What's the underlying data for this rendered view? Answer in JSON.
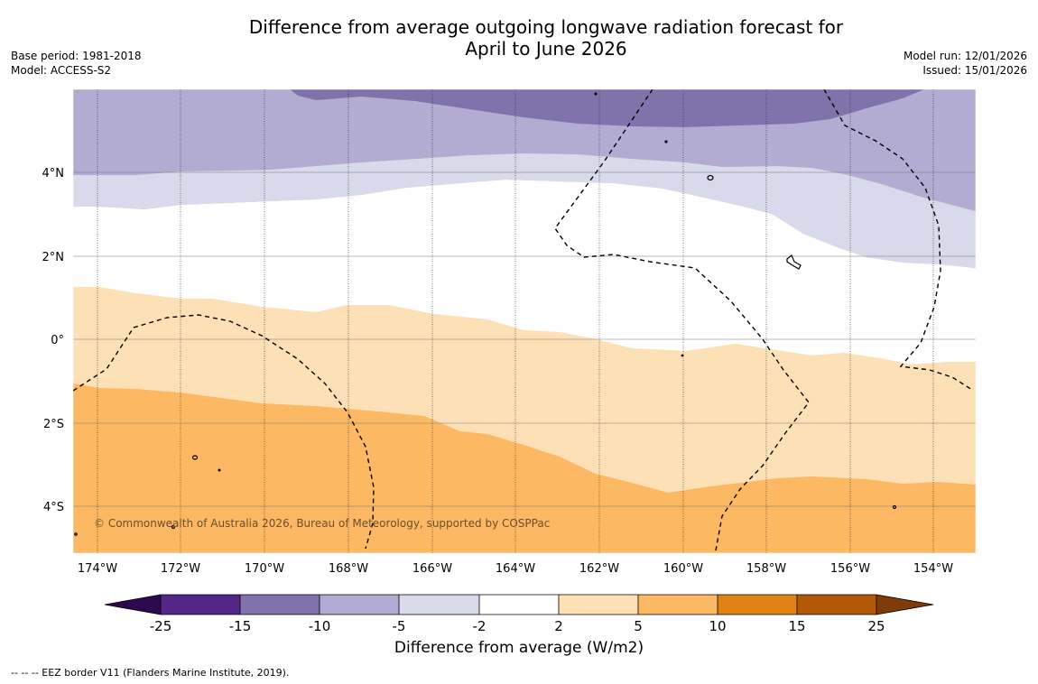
{
  "title": "Difference from average outgoing longwave radiation forecast for April to June 2026",
  "title_lines": [
    "Difference from average outgoing longwave radiation forecast for",
    "April to June 2026"
  ],
  "meta_left": {
    "base_period": "Base period: 1981-2018",
    "model": "Model: ACCESS-S2"
  },
  "meta_right": {
    "model_run": "Model run: 12/01/2026",
    "issued": "Issued: 15/01/2026"
  },
  "map": {
    "lon_labels": [
      "174°W",
      "172°W",
      "170°W",
      "168°W",
      "166°W",
      "164°W",
      "162°W",
      "160°W",
      "158°W",
      "156°W",
      "154°W"
    ],
    "lat_labels": [
      "4°N",
      "2°N",
      "0°",
      "2°S",
      "4°S"
    ],
    "copyright": "© Commonwealth of Australia 2026, Bureau of Meteorology, supported by COSPPac"
  },
  "colorbar": {
    "title": "Difference from average (W/m2)",
    "ticks": [
      "-25",
      "-15",
      "-10",
      "-5",
      "-2",
      "2",
      "5",
      "10",
      "15",
      "25"
    ],
    "colors": {
      "below": "#2d0a4e",
      "lt_m15": "#542788",
      "m15_m10": "#8073ac",
      "m10_m5": "#b2abd2",
      "m5_m2": "#d8daeb",
      "m2_p2": "#ffffff",
      "p2_p5": "#fee0b6",
      "p5_p10": "#fdb863",
      "p10_p15": "#e08214",
      "p15_p25": "#b35806",
      "above": "#7f3b08"
    }
  },
  "footnote": "--  --  -- EEZ border V11 (Flanders Marine Institute, 2019)."
}
